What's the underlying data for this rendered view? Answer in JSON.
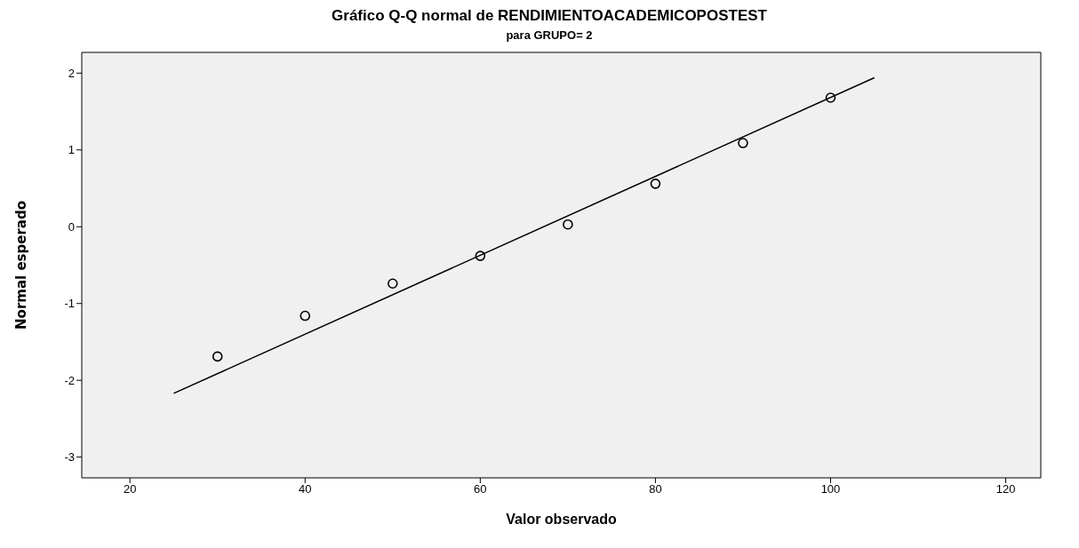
{
  "chart_data": {
    "type": "scatter",
    "title": "Gráfico Q-Q normal de RENDIMIENTOACADEMICOPOSTEST",
    "subtitle": "para GRUPO= 2",
    "xlabel": "Valor observado",
    "ylabel": "Normal esperado",
    "x": [
      30,
      40,
      50,
      60,
      70,
      80,
      90,
      100
    ],
    "series": [
      {
        "color": "#000000",
        "values": [
          -1.69,
          -1.16,
          -0.74,
          -0.38,
          0.03,
          0.56,
          1.09,
          1.68
        ],
        "marker": "circle"
      },
      {
        "type": "line",
        "color": "#000000",
        "x": [
          25,
          105
        ],
        "values": [
          -2.17,
          1.94
        ],
        "marker": "none",
        "line_style": "solid"
      }
    ],
    "xlim": [
      14.5,
      124
    ],
    "xticks": [
      20,
      40,
      60,
      80,
      100,
      120
    ],
    "ylim": [
      -3.27,
      2.27
    ],
    "yticks": [
      -3,
      -2,
      -1,
      0,
      1,
      2
    ],
    "grid": false
  }
}
